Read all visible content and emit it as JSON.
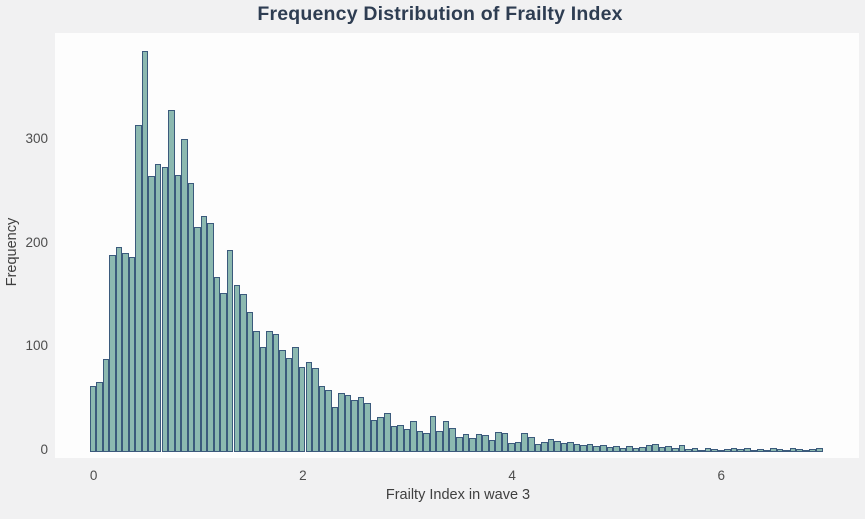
{
  "title": "Frequency Distribution of Frailty Index",
  "chart_data": {
    "type": "bar",
    "subtype": "histogram",
    "title": "Frequency Distribution of Frailty Index",
    "xlabel": "Frailty Index in wave 3",
    "ylabel": "Frequency",
    "x_ticks": [
      0,
      2,
      4,
      6
    ],
    "y_ticks": [
      0,
      100,
      200,
      300
    ],
    "xlim": [
      -0.37,
      7.32
    ],
    "ylim": [
      0,
      400
    ],
    "grid": false,
    "legend": "none",
    "bin_start": -0.04,
    "bin_width": 0.0625,
    "counts": [
      62,
      66,
      88,
      188,
      196,
      190,
      186,
      313,
      385,
      264,
      276,
      273,
      328,
      265,
      300,
      257,
      215,
      226,
      219,
      167,
      151,
      193,
      159,
      150,
      133,
      115,
      99,
      115,
      112,
      96,
      89,
      99,
      80,
      85,
      79,
      62,
      58,
      41,
      55,
      53,
      48,
      51,
      45,
      29,
      32,
      36,
      23,
      24,
      20,
      28,
      18,
      16,
      33,
      18,
      28,
      21,
      13,
      15,
      12,
      15,
      14,
      10,
      17,
      16,
      7,
      8,
      16,
      13,
      6,
      8,
      11,
      9,
      7,
      8,
      6,
      5,
      6,
      4,
      5,
      3,
      4,
      2,
      4,
      2,
      3,
      5,
      6,
      3,
      4,
      2,
      5,
      1,
      2,
      0,
      2,
      1,
      0,
      1,
      2,
      1,
      2,
      0,
      1,
      0,
      2,
      1,
      0,
      2,
      1,
      0,
      1,
      2
    ]
  },
  "colors": {
    "page_background": "#f1f1f2",
    "plot_background": "#fdfdfd",
    "bar_fill": "#8cb9b0",
    "bar_edge": "#3b5a7c",
    "title_text": "#2e3d52",
    "tick_text": "#4d4d4d",
    "axis_label_text": "#3f3f3f"
  }
}
